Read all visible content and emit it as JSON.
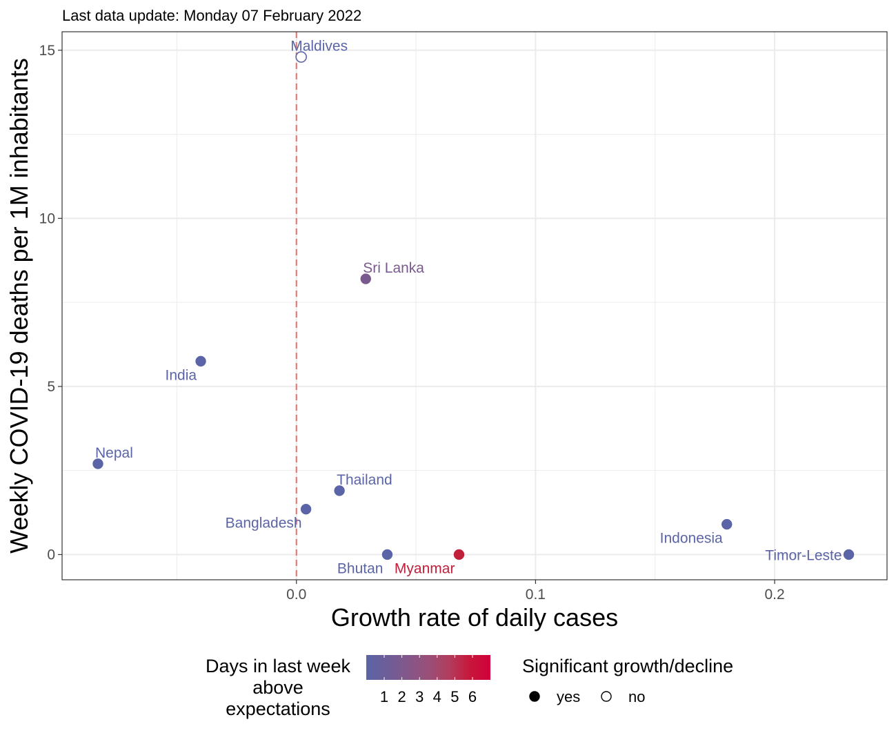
{
  "chart_data": {
    "type": "scatter",
    "subtitle": "Last data update: Monday 07 February 2022",
    "xlabel": "Growth rate of daily cases",
    "ylabel": "Weekly COVID-19 deaths per 1M inhabitants",
    "xlim": [
      -0.098,
      0.247
    ],
    "ylim": [
      -0.75,
      15.55
    ],
    "x_ticks": [
      {
        "value": 0.0,
        "label": "0.0"
      },
      {
        "value": 0.1,
        "label": "0.1"
      },
      {
        "value": 0.2,
        "label": "0.2"
      }
    ],
    "x_minor_ticks": [
      -0.05,
      0.05,
      0.15
    ],
    "y_ticks": [
      {
        "value": 0,
        "label": "0"
      },
      {
        "value": 5,
        "label": "5"
      },
      {
        "value": 10,
        "label": "10"
      },
      {
        "value": 15,
        "label": "15"
      }
    ],
    "y_minor_ticks": [
      2.5,
      7.5,
      12.5
    ],
    "grid": true,
    "reference_line": {
      "x": 0,
      "style": "dashed",
      "color": "#E8706A"
    },
    "points": [
      {
        "name": "Maldives",
        "x": 0.002,
        "y": 14.8,
        "days_above": 1,
        "significant": false,
        "color": "#5B64A6",
        "label_pos": "above"
      },
      {
        "name": "Sri Lanka",
        "x": 0.029,
        "y": 8.2,
        "days_above": 2,
        "significant": true,
        "color": "#7A5A8E",
        "label_pos": "above-right"
      },
      {
        "name": "India",
        "x": -0.04,
        "y": 5.75,
        "days_above": 1,
        "significant": true,
        "color": "#5B64A6",
        "label_pos": "below-left"
      },
      {
        "name": "Nepal",
        "x": -0.083,
        "y": 2.7,
        "days_above": 1,
        "significant": true,
        "color": "#5B64A6",
        "label_pos": "above-right"
      },
      {
        "name": "Thailand",
        "x": 0.018,
        "y": 1.9,
        "days_above": 1,
        "significant": true,
        "color": "#5B64A6",
        "label_pos": "above-right"
      },
      {
        "name": "Bangladesh",
        "x": 0.004,
        "y": 1.35,
        "days_above": 1,
        "significant": true,
        "color": "#5B64A6",
        "label_pos": "below-left"
      },
      {
        "name": "Bhutan",
        "x": 0.038,
        "y": 0.0,
        "days_above": 1,
        "significant": true,
        "color": "#5B64A6",
        "label_pos": "below-left"
      },
      {
        "name": "Myanmar",
        "x": 0.068,
        "y": 0.0,
        "days_above": 6,
        "significant": true,
        "color": "#C0203A",
        "label_pos": "below-left"
      },
      {
        "name": "Indonesia",
        "x": 0.18,
        "y": 0.9,
        "days_above": 1,
        "significant": true,
        "color": "#5B64A6",
        "label_pos": "below-left"
      },
      {
        "name": "Timor-Leste",
        "x": 0.231,
        "y": 0.0,
        "days_above": 1,
        "significant": true,
        "color": "#5B64A6",
        "label_pos": "left"
      }
    ],
    "legend": {
      "placement": "bottom",
      "color_title": "Days in last week above expectations",
      "color_title_lines": [
        "Days in last week",
        "above",
        "expectations"
      ],
      "color_labels": [
        "1",
        "2",
        "3",
        "4",
        "5",
        "6"
      ],
      "color_stops": [
        "#5B64A6",
        "#6D5E98",
        "#83578A",
        "#994F78",
        "#B23D5D",
        "#C7173A",
        "#D0003A"
      ],
      "shape_title": "Significant growth/decline",
      "shape_items": [
        {
          "label": "yes",
          "filled": true
        },
        {
          "label": "no",
          "filled": false
        }
      ]
    }
  }
}
